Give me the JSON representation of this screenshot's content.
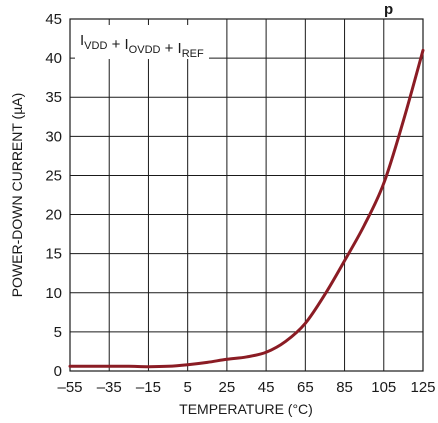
{
  "chart_data": {
    "type": "line",
    "title": "p",
    "xlabel": "TEMPERATURE (°C)",
    "ylabel": "POWER-DOWN CURRENT (µA)",
    "xlim": [
      -55,
      125
    ],
    "ylim": [
      0,
      45
    ],
    "x_ticks": [
      "–55",
      "–35",
      "–15",
      "5",
      "25",
      "45",
      "65",
      "85",
      "105",
      "125"
    ],
    "y_ticks": [
      "0",
      "5",
      "10",
      "15",
      "20",
      "25",
      "30",
      "35",
      "40",
      "45"
    ],
    "grid": true,
    "legend": {
      "placement": "top-left",
      "parts": [
        {
          "main": "I",
          "sub": "VDD"
        },
        {
          "main": " + I",
          "sub": "OVDD"
        },
        {
          "main": " + I",
          "sub": "REF"
        }
      ]
    },
    "series": [
      {
        "color": "#8b1c24",
        "x": [
          -55,
          -45,
          -35,
          -25,
          -15,
          -5,
          5,
          15,
          25,
          35,
          45,
          55,
          65,
          75,
          85,
          95,
          105,
          115,
          125
        ],
        "y": [
          0.6,
          0.6,
          0.6,
          0.6,
          0.55,
          0.6,
          0.8,
          1.1,
          1.5,
          1.8,
          2.4,
          3.8,
          6.1,
          9.8,
          14.1,
          18.6,
          24.0,
          32.0,
          41.0
        ]
      }
    ]
  }
}
